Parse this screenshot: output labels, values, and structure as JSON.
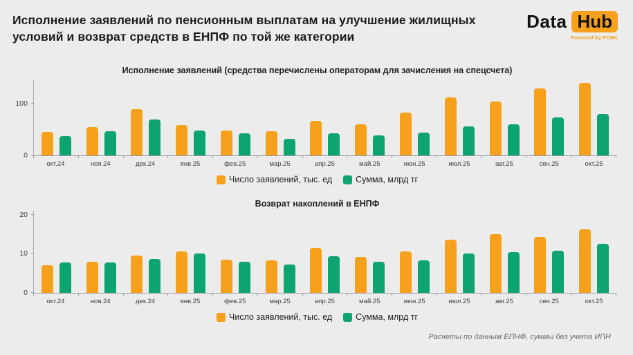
{
  "header": {
    "title": "Исполнение заявлений по пенсионным выплатам на улучшение жилищных условий и возврат средств в ЕНПФ по той же категории",
    "logo": {
      "part1": "Data",
      "part2": "Hub",
      "powered": "Powered by FCBK"
    }
  },
  "footer": {
    "source_note": "Расчеты по данным ЕПНФ, суммы без учета ИПН"
  },
  "colors": {
    "orange": "#F7A01B",
    "green": "#0EA470",
    "background": "#ECECEC"
  },
  "chart_data": [
    {
      "type": "bar",
      "title": "Исполнение заявлений (средства перечислены операторам для зачисления на спецсчета)",
      "categories": [
        "окт.24",
        "ноя.24",
        "дек.24",
        "янв.25",
        "фев.25",
        "мар.25",
        "апр.25",
        "май.25",
        "июн.25",
        "июл.25",
        "авг.25",
        "сен.25",
        "окт.25"
      ],
      "series": [
        {
          "name": "Число заявлений, тыс. ед",
          "color": "#F7A01B",
          "values": [
            45,
            55,
            89,
            59,
            48,
            47,
            66,
            60,
            82,
            111,
            103,
            129,
            139
          ]
        },
        {
          "name": "Сумма, млрд тг",
          "color": "#0EA470",
          "values": [
            37,
            46,
            69,
            48,
            42,
            32,
            42,
            39,
            44,
            56,
            60,
            73,
            80
          ]
        }
      ],
      "ylim": [
        0,
        146
      ],
      "yticks": [
        0,
        100
      ],
      "xlabel": "",
      "ylabel": "",
      "grid": false,
      "legend_position": "bottom"
    },
    {
      "type": "bar",
      "title": "Возврат накоплений в ЕНПФ",
      "categories": [
        "окт.24",
        "ноя.24",
        "дек.24",
        "янв.25",
        "фев.25",
        "мар.25",
        "апр.25",
        "май.25",
        "июн.25",
        "июл.25",
        "авг.25",
        "сен.25",
        "окт.25"
      ],
      "series": [
        {
          "name": "Число заявлений, тыс. ед",
          "color": "#F7A01B",
          "values": [
            7,
            7.9,
            9.5,
            10.6,
            8.4,
            8.3,
            11.4,
            9.2,
            10.6,
            13.6,
            15,
            14.3,
            16.3
          ]
        },
        {
          "name": "Сумма, млрд тг",
          "color": "#0EA470",
          "values": [
            7.7,
            7.7,
            8.7,
            10.1,
            7.9,
            7.3,
            9.3,
            8,
            8.3,
            10,
            10.5,
            10.7,
            12.6
          ]
        }
      ],
      "ylim": [
        0,
        21
      ],
      "yticks": [
        0,
        10,
        20
      ],
      "xlabel": "",
      "ylabel": "",
      "grid": false,
      "legend_position": "bottom"
    }
  ]
}
